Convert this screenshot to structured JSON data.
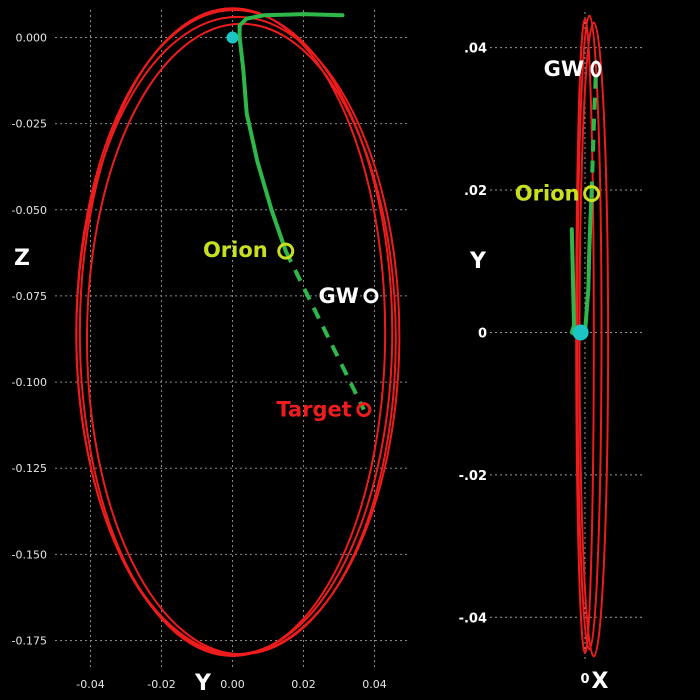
{
  "chart_data": [
    {
      "type": "line",
      "view": "Y-Z",
      "xlabel": "Y",
      "ylabel": "Z",
      "xlim": [
        -0.05,
        0.05
      ],
      "ylim": [
        -0.183,
        0.008
      ],
      "grid": true,
      "x_ticks": [
        -0.04,
        -0.02,
        0.0,
        0.02,
        0.04
      ],
      "x_tick_labels": [
        "-0.04",
        "-0.02",
        "0.00",
        "0.02",
        "0.04"
      ],
      "y_ticks": [
        0.0,
        -0.025,
        -0.05,
        -0.075,
        -0.1,
        -0.125,
        -0.15,
        -0.175
      ],
      "y_tick_labels": [
        "0.000",
        "-0.025",
        "-0.050",
        "-0.075",
        "-0.100",
        "-0.125",
        "-0.150",
        "-0.175"
      ],
      "series": [
        {
          "color": "#ee1c1c",
          "style": "orbit",
          "orbits": [
            {
              "center": [
                0.0,
                -0.0855
              ],
              "semi_axes": [
                0.043,
                0.094
              ]
            },
            {
              "center": [
                0.0005,
                -0.0855
              ],
              "semi_axes": [
                0.0445,
                0.0935
              ]
            },
            {
              "center": [
                0.0015,
                -0.0865
              ],
              "semi_axes": [
                0.0455,
                0.0925
              ]
            },
            {
              "center": [
                0.0025,
                -0.0875
              ],
              "semi_axes": [
                0.0435,
                0.0915
              ]
            }
          ]
        },
        {
          "color": "#2fb84a",
          "style": "solid",
          "x": [
            0.031,
            0.02,
            0.009,
            0.004,
            0.002,
            0.002,
            0.003,
            0.004,
            0.007,
            0.011,
            0.015
          ],
          "y": [
            0.0065,
            0.0068,
            0.0065,
            0.0055,
            0.0035,
            0.0,
            -0.009,
            -0.022,
            -0.036,
            -0.05,
            -0.062
          ]
        },
        {
          "color": "#2fb84a",
          "style": "dashed",
          "x": [
            0.015,
            0.026,
            0.037
          ],
          "y": [
            -0.062,
            -0.085,
            -0.108
          ]
        }
      ],
      "markers": [
        {
          "name": "Orion",
          "x": 0.015,
          "y": -0.062,
          "color": "#c8e020"
        },
        {
          "name": "GW",
          "x": 0.039,
          "y": -0.075,
          "color": "#ffffff"
        },
        {
          "name": "Target",
          "x": 0.037,
          "y": -0.108,
          "color": "#ee1c1c"
        },
        {
          "name": "",
          "x": 0.0,
          "y": 0.0,
          "color": "#1cc4c4"
        }
      ]
    },
    {
      "type": "line",
      "view": "X-Y",
      "xlabel": "X",
      "ylabel": "Y",
      "xlim": [
        -0.007,
        0.005
      ],
      "ylim": [
        -0.046,
        0.045
      ],
      "grid": true,
      "x_ticks": [
        0
      ],
      "x_tick_labels": [
        "0"
      ],
      "y_ticks": [
        0.04,
        0.02,
        0,
        -0.02,
        -0.04
      ],
      "y_tick_labels": [
        ".04",
        ".02",
        "0",
        "-.02",
        "-.04"
      ],
      "series": [
        {
          "color": "#ee1c1c",
          "style": "orbit",
          "orbits": [
            {
              "center": [
                0.0,
                -0.0005
              ],
              "semi_axes": [
                0.0008,
                0.0445
              ]
            },
            {
              "center": [
                0.0004,
                0.0
              ],
              "semi_axes": [
                0.0011,
                0.0445
              ]
            },
            {
              "center": [
                0.0008,
                -0.001
              ],
              "semi_axes": [
                0.0013,
                0.0445
              ]
            }
          ]
        },
        {
          "color": "#2fb84a",
          "style": "solid",
          "x": [
            -0.0012,
            -0.0011,
            -0.001,
            -0.0012,
            -0.0008,
            0.0,
            0.0003,
            0.0004,
            0.0005,
            0.0006
          ],
          "y": [
            0.0145,
            0.008,
            0.001,
            0.0,
            -0.0003,
            0.0,
            0.006,
            0.012,
            0.016,
            0.0195
          ]
        },
        {
          "color": "#2fb84a",
          "style": "dashed",
          "x": [
            0.0006,
            0.0008,
            0.001
          ],
          "y": [
            0.0195,
            0.029,
            0.037
          ]
        }
      ],
      "markers": [
        {
          "name": "GW",
          "x": 0.001,
          "y": 0.037,
          "color": "#ffffff"
        },
        {
          "name": "Orion",
          "x": 0.0006,
          "y": 0.0195,
          "color": "#c8e020"
        },
        {
          "name": "",
          "x": -0.0004,
          "y": 0.0,
          "color": "#1cc4c4"
        }
      ]
    }
  ]
}
